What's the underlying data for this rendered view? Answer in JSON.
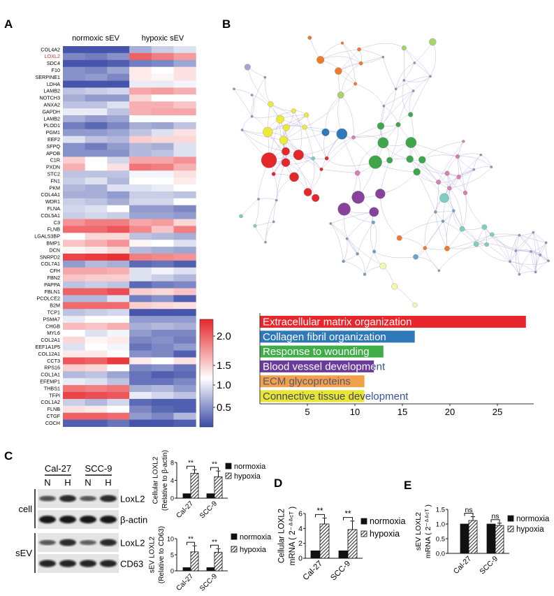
{
  "panel_labels": {
    "a": "A",
    "b": "B",
    "c": "C",
    "d": "D",
    "e": "E"
  },
  "colors": {
    "low": "#3b4ba6",
    "mid": "#ffffff",
    "high": "#e8262b",
    "highlight_gene": "#d32f2f",
    "edge": "#8e7cc3"
  },
  "chart_data": [
    {
      "id": "heatmap",
      "type": "heatmap",
      "column_groups": [
        "normoxic sEV",
        "hypoxic sEV"
      ],
      "highlight": "LOXL2",
      "colorbar": {
        "ticks": [
          "2.0",
          "1.5",
          "1.0",
          "0.5"
        ],
        "range": [
          0.3,
          2.3
        ]
      },
      "rows": [
        {
          "gene": "COL4A2",
          "v": [
            0.35,
            0.35,
            0.35,
            0.8,
            0.95,
            1.05
          ]
        },
        {
          "gene": "LOXL2",
          "v": [
            0.6,
            0.55,
            0.65,
            2.0,
            1.85,
            1.7
          ]
        },
        {
          "gene": "SDC4",
          "v": [
            0.35,
            0.35,
            0.4,
            0.55,
            0.6,
            0.75
          ]
        },
        {
          "gene": "F10",
          "v": [
            0.65,
            0.6,
            0.75,
            1.3,
            1.2,
            1.35
          ]
        },
        {
          "gene": "SERPINE1",
          "v": [
            0.65,
            0.7,
            0.6,
            1.3,
            1.25,
            1.35
          ]
        },
        {
          "gene": "LDHA",
          "v": [
            0.35,
            0.35,
            0.35,
            1.1,
            1.1,
            1.15
          ]
        },
        {
          "gene": "LAMB2",
          "v": [
            0.9,
            0.95,
            1.0,
            1.65,
            1.7,
            1.6
          ]
        },
        {
          "gene": "NOTCH3",
          "v": [
            0.8,
            0.7,
            0.7,
            1.4,
            1.2,
            1.2
          ]
        },
        {
          "gene": "ANXA2",
          "v": [
            0.9,
            0.9,
            1.05,
            1.6,
            1.6,
            1.5
          ]
        },
        {
          "gene": "GAPDH",
          "v": [
            1.1,
            1.1,
            0.9,
            1.6,
            1.65,
            1.65
          ]
        },
        {
          "gene": "LAMB2",
          "v": [
            0.8,
            0.7,
            0.75,
            1.2,
            1.2,
            1.2
          ]
        },
        {
          "gene": "PLOD1",
          "v": [
            0.55,
            0.45,
            0.6,
            0.8,
            0.75,
            0.9
          ]
        },
        {
          "gene": "PGM1",
          "v": [
            0.7,
            0.7,
            0.75,
            0.9,
            1.05,
            1.35
          ]
        },
        {
          "gene": "EEF2",
          "v": [
            1.05,
            0.9,
            0.85,
            1.45,
            1.4,
            1.4
          ]
        },
        {
          "gene": "SFPQ",
          "v": [
            0.65,
            0.55,
            0.7,
            0.85,
            0.8,
            1.05
          ]
        },
        {
          "gene": "APOB",
          "v": [
            0.65,
            0.65,
            0.65,
            0.85,
            0.9,
            1.05
          ]
        },
        {
          "gene": "C1R",
          "v": [
            1.45,
            1.2,
            1.0,
            1.65,
            1.65,
            1.75
          ]
        },
        {
          "gene": "PXDN",
          "v": [
            1.6,
            1.2,
            1.35,
            1.9,
            1.85,
            1.6
          ]
        },
        {
          "gene": "STC2",
          "v": [
            0.9,
            0.9,
            0.9,
            1.15,
            1.15,
            1.35
          ]
        },
        {
          "gene": "FN1",
          "v": [
            0.95,
            1.05,
            0.85,
            1.2,
            1.2,
            1.3
          ]
        },
        {
          "gene": "PKM",
          "v": [
            0.85,
            0.8,
            1.05,
            1.05,
            1.1,
            1.2
          ]
        },
        {
          "gene": "COL4A1",
          "v": [
            0.8,
            0.8,
            0.7,
            0.95,
            0.95,
            0.9
          ]
        },
        {
          "gene": "WDR1",
          "v": [
            0.95,
            0.9,
            0.8,
            1.0,
            1.0,
            1.2
          ]
        },
        {
          "gene": "FLNA",
          "v": [
            1.0,
            1.05,
            1.2,
            0.7,
            0.7,
            0.6
          ]
        },
        {
          "gene": "COL5A1",
          "v": [
            0.95,
            1.0,
            0.95,
            0.75,
            0.75,
            0.7
          ]
        },
        {
          "gene": "C3",
          "v": [
            1.75,
            1.85,
            1.85,
            1.65,
            1.7,
            1.4
          ]
        },
        {
          "gene": "FLNB",
          "v": [
            1.95,
            1.95,
            2.05,
            1.8,
            1.5,
            1.85
          ]
        },
        {
          "gene": "LGALS3BP",
          "v": [
            1.2,
            1.4,
            1.4,
            0.9,
            0.85,
            0.8
          ]
        },
        {
          "gene": "BMP1",
          "v": [
            1.5,
            1.6,
            1.75,
            1.25,
            1.2,
            1.05
          ]
        },
        {
          "gene": "DCN",
          "v": [
            1.25,
            1.3,
            1.4,
            0.85,
            0.8,
            0.75
          ]
        },
        {
          "gene": "SNRPD2",
          "v": [
            2.15,
            2.2,
            2.25,
            1.85,
            1.8,
            1.75
          ]
        },
        {
          "gene": "COL7A1",
          "v": [
            0.7,
            0.85,
            0.8,
            0.45,
            0.5,
            0.4
          ]
        },
        {
          "gene": "CFH",
          "v": [
            1.65,
            1.65,
            1.6,
            1.05,
            1.15,
            1.05
          ]
        },
        {
          "gene": "FBN2",
          "v": [
            1.5,
            1.45,
            1.45,
            1.05,
            0.95,
            0.85
          ]
        },
        {
          "gene": "PAPPA",
          "v": [
            0.9,
            0.95,
            0.9,
            0.45,
            0.55,
            0.6
          ]
        },
        {
          "gene": "FBLN1",
          "v": [
            2.0,
            2.0,
            2.1,
            1.45,
            1.4,
            1.5
          ]
        },
        {
          "gene": "PCOLCE2",
          "v": [
            0.85,
            0.85,
            1.05,
            0.55,
            0.65,
            0.4
          ]
        },
        {
          "gene": "B2M",
          "v": [
            1.95,
            1.95,
            1.95,
            1.45,
            1.4,
            1.35
          ]
        },
        {
          "gene": "TCP1",
          "v": [
            0.9,
            0.95,
            1.0,
            0.35,
            0.35,
            0.35
          ]
        },
        {
          "gene": "PSMA7",
          "v": [
            1.1,
            1.2,
            1.2,
            0.7,
            0.7,
            0.7
          ]
        },
        {
          "gene": "CHGB",
          "v": [
            1.55,
            1.5,
            1.6,
            0.8,
            0.85,
            0.8
          ]
        },
        {
          "gene": "MYL6",
          "v": [
            1.2,
            1.05,
            1.15,
            0.7,
            0.6,
            0.6
          ]
        },
        {
          "gene": "COL2A1",
          "v": [
            1.4,
            1.25,
            1.3,
            0.6,
            0.65,
            0.55
          ]
        },
        {
          "gene": "EEF1A1P5",
          "v": [
            1.05,
            1.2,
            1.15,
            0.5,
            0.6,
            0.7
          ]
        },
        {
          "gene": "COL12A1",
          "v": [
            1.3,
            1.3,
            1.2,
            0.65,
            0.6,
            0.4
          ]
        },
        {
          "gene": "CCT3",
          "v": [
            2.05,
            2.0,
            2.2,
            1.3,
            1.2,
            1.35
          ]
        },
        {
          "gene": "RPS16",
          "v": [
            1.45,
            1.4,
            1.2,
            0.6,
            0.65,
            0.5
          ]
        },
        {
          "gene": "COL1A1",
          "v": [
            0.85,
            0.9,
            0.75,
            0.5,
            0.4,
            0.45
          ]
        },
        {
          "gene": "EFEMP1",
          "v": [
            1.1,
            1.05,
            0.9,
            0.5,
            0.5,
            0.6
          ]
        },
        {
          "gene": "THBS1",
          "v": [
            1.9,
            1.85,
            1.9,
            0.8,
            0.85,
            0.7
          ]
        },
        {
          "gene": "TFPI",
          "v": [
            2.15,
            2.1,
            2.05,
            1.1,
            1.0,
            0.9
          ]
        },
        {
          "gene": "COL1A2",
          "v": [
            0.95,
            0.85,
            1.0,
            0.45,
            0.4,
            0.4
          ]
        },
        {
          "gene": "FLNB",
          "v": [
            1.35,
            1.3,
            1.2,
            0.6,
            0.45,
            0.4
          ]
        },
        {
          "gene": "CTGF",
          "v": [
            2.0,
            2.0,
            1.95,
            0.7,
            0.6,
            0.85
          ]
        },
        {
          "gene": "COCH",
          "v": [
            0.4,
            0.4,
            0.5,
            0.35,
            0.35,
            0.4
          ]
        }
      ]
    },
    {
      "id": "enrichment",
      "type": "bar",
      "orientation": "horizontal",
      "categories": [
        "Extracellular matrix organization",
        "Collagen fibril organization",
        "Response to  wounding",
        "Blood vessel  development",
        "ECM glycoproteins",
        "Connective tissue development"
      ],
      "values": [
        28,
        16.3,
        13.0,
        12.0,
        11.0,
        11.0
      ],
      "bar_colors": [
        "#e8262b",
        "#2f78b9",
        "#3fae49",
        "#6a3b9a",
        "#f0a14a",
        "#e6e633"
      ],
      "label_colors": [
        "#ffffff",
        "#ffffff",
        "#ffffff",
        "#ffffff",
        "#555577",
        "#444466"
      ],
      "overflow_color": "#3a4f9a",
      "xticks": [
        "5",
        "10",
        "15",
        "20",
        "25"
      ],
      "xlim": [
        0,
        29
      ]
    },
    {
      "id": "c-cellular",
      "type": "bar",
      "ylabel": [
        "Cellular LOXL2",
        "(Relative to β-actin)"
      ],
      "categories": [
        "Cal-27",
        "SCC-9"
      ],
      "series": [
        {
          "name": "normoxia",
          "values": [
            1,
            1
          ],
          "errors": [
            0,
            0
          ]
        },
        {
          "name": "hypoxia",
          "values": [
            5.6,
            4.8
          ],
          "errors": [
            0.8,
            1.3
          ]
        }
      ],
      "yticks": [
        "0",
        "4",
        "8"
      ],
      "ylim": [
        0,
        8
      ],
      "significance": [
        "**",
        "**"
      ]
    },
    {
      "id": "c-sev",
      "type": "bar",
      "ylabel": [
        "sEV LOXL2",
        "(Relative to CD63)"
      ],
      "categories": [
        "Cal-27",
        "SCC-9"
      ],
      "series": [
        {
          "name": "normoxia",
          "values": [
            1,
            1
          ],
          "errors": [
            0,
            0
          ]
        },
        {
          "name": "hypoxia",
          "values": [
            5.9,
            5.8
          ],
          "errors": [
            1.9,
            1.1
          ]
        }
      ],
      "yticks": [
        "0",
        "5",
        "10"
      ],
      "ylim": [
        0,
        10
      ],
      "significance": [
        "**",
        "**"
      ]
    },
    {
      "id": "d",
      "type": "bar",
      "ylabel": [
        "Cellular LOXL2",
        "mRNA ( 2⁻ᐞᐞᶜᵀ )"
      ],
      "categories": [
        "Cal-27",
        "SCC-9"
      ],
      "series": [
        {
          "name": "normoxia",
          "values": [
            1,
            1
          ],
          "errors": [
            0,
            0
          ]
        },
        {
          "name": "hypoxia",
          "values": [
            4.6,
            3.85
          ],
          "errors": [
            0.8,
            1.15
          ]
        }
      ],
      "yticks": [
        "0",
        "2",
        "4",
        "6"
      ],
      "ylim": [
        0,
        6
      ],
      "significance": [
        "**",
        "**"
      ]
    },
    {
      "id": "e",
      "type": "bar",
      "ylabel": [
        "sEV LOXL2",
        "mRNA ( 2⁻ᐞᐞᶜᵀ )"
      ],
      "categories": [
        "Cal-27",
        "SCC-9"
      ],
      "series": [
        {
          "name": "normoxia",
          "values": [
            1.0,
            1.0
          ],
          "errors": [
            0,
            0
          ]
        },
        {
          "name": "hypoxia",
          "values": [
            1.12,
            0.95
          ],
          "errors": [
            0.13,
            0.08
          ]
        }
      ],
      "yticks": [
        "0.0",
        "0.5",
        "1.0",
        "1.5"
      ],
      "ylim": [
        0,
        1.5
      ],
      "significance": [
        "ns",
        "ns"
      ]
    }
  ],
  "western_blot": {
    "cell_lines": [
      "Cal-27",
      "SCC-9"
    ],
    "lanes": [
      "N",
      "H",
      "N",
      "H"
    ],
    "groups": [
      "cell",
      "sEV"
    ],
    "bands": [
      "LoxL2",
      "β-actin",
      "LoxL2",
      "CD63"
    ],
    "band_intensity": [
      [
        0.55,
        0.85,
        0.5,
        0.85
      ],
      [
        1,
        1,
        1,
        1
      ],
      [
        0.5,
        0.85,
        0.45,
        0.85
      ],
      [
        0.9,
        0.9,
        0.9,
        0.9
      ]
    ]
  }
}
